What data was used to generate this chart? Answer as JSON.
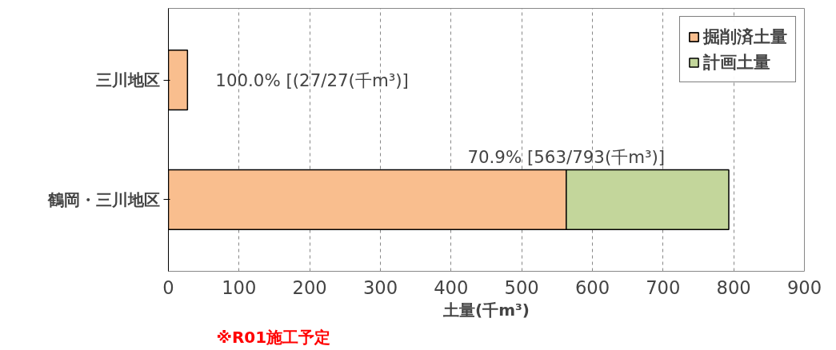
{
  "chart_data": {
    "type": "bar",
    "orientation": "horizontal",
    "stacked": true,
    "categories": [
      "三川地区",
      "鶴岡・三川地区"
    ],
    "series": [
      {
        "name": "掘削済土量",
        "color": "#f9be8e",
        "values": [
          27,
          563
        ]
      },
      {
        "name": "計画土量",
        "color": "#c3d69b",
        "values": [
          null,
          230
        ]
      }
    ],
    "xlim": [
      0,
      900
    ],
    "xticks": [
      0,
      100,
      200,
      300,
      400,
      500,
      600,
      700,
      800,
      900
    ],
    "xlabel": "土量(千m³)",
    "annotations": [
      {
        "text": "100.0% [(27/27(千m³)]",
        "x": 27,
        "y": "三川地区"
      },
      {
        "text": "70.9% [563/793(千m³)]",
        "x": 563,
        "y": "鶴岡・三川地区"
      },
      "※R01施工予定"
    ],
    "grid": "x",
    "legend": "top right"
  }
}
